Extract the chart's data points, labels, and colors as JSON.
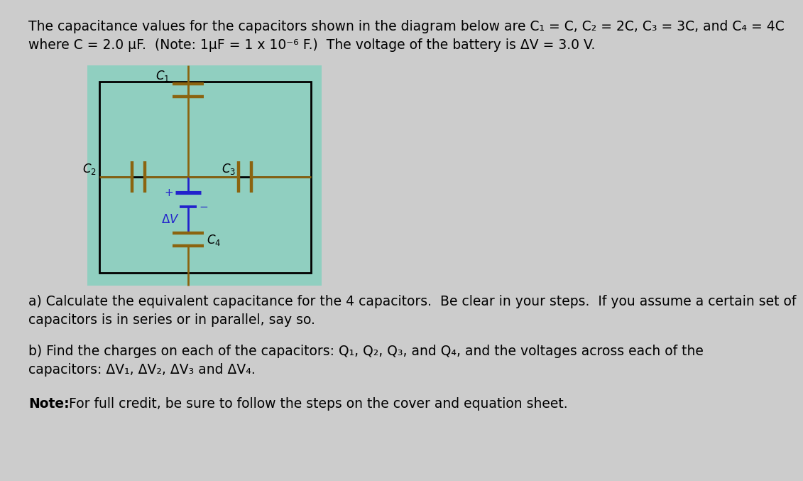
{
  "bg_color": "#cccccc",
  "circuit_bg": "#90cfc0",
  "text_color": "#000000",
  "wire_color": "#8B6410",
  "battery_color": "#2222cc",
  "line1": "The capacitance values for the capacitors shown in the diagram below are C₁ = C, C₂ = 2C, C₃ = 3C, and C₄ = 4C",
  "line2": "where C = 2.0 μF.  (Note: 1μF = 1 x 10⁻⁶ F.)  The voltage of the battery is ΔV = 3.0 V.",
  "part_a": "a) Calculate the equivalent capacitance for the 4 capacitors.  Be clear in your steps.  If you assume a certain set of",
  "part_a2": "capacitors is in series or in parallel, say so.",
  "part_b": "b) Find the charges on each of the capacitors: Q₁, Q₂, Q₃, and Q₄, and the voltages across each of the",
  "part_b2": "capacitors: ΔV₁, ΔV₂, ΔV₃ and ΔV₄.",
  "note_bold": "Note:",
  "note_rest": " For full credit, be sure to follow the steps on the cover and equation sheet.",
  "text_fs": 13.5,
  "circuit_label_fs": 12.0
}
